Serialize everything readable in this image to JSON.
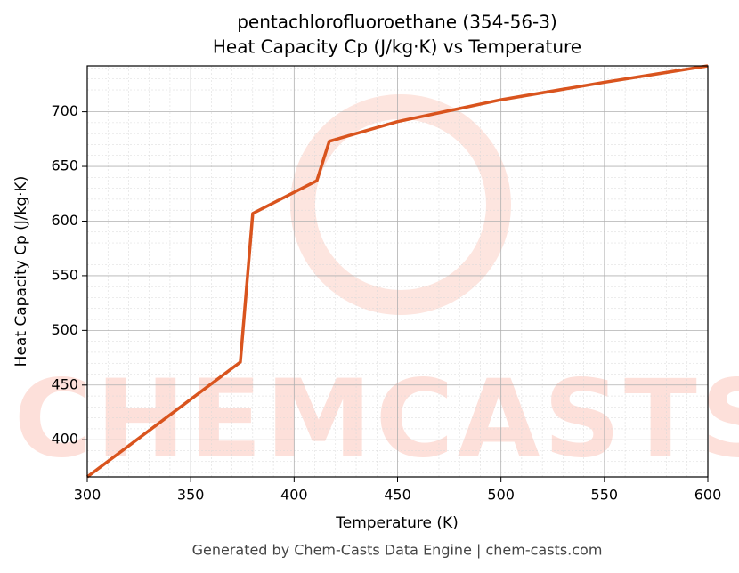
{
  "chart_data": {
    "type": "line",
    "title": "pentachlorofluoroethane (354-56-3)",
    "subtitle": "Heat Capacity Cp (J/kg·K) vs Temperature",
    "x_label": "Temperature (K)",
    "y_label": "Heat Capacity Cp (J/kg·K)",
    "footer": "Generated by Chem-Casts Data Engine | chem-casts.com",
    "watermark": "CHEMCASTS",
    "x": [
      300,
      374,
      380,
      411,
      417,
      450,
      500,
      550,
      600
    ],
    "series": [
      {
        "name": "Cp",
        "color": "#d9541e",
        "values": [
          366,
          471,
          607,
          637,
          673,
          691,
          711,
          727,
          742
        ]
      }
    ],
    "xlim": [
      300,
      600
    ],
    "xticks": [
      300,
      350,
      400,
      450,
      500,
      550,
      600
    ],
    "ylim": [
      366,
      742
    ],
    "yticks": [
      400,
      450,
      500,
      550,
      600,
      650,
      700
    ],
    "grid": true
  }
}
